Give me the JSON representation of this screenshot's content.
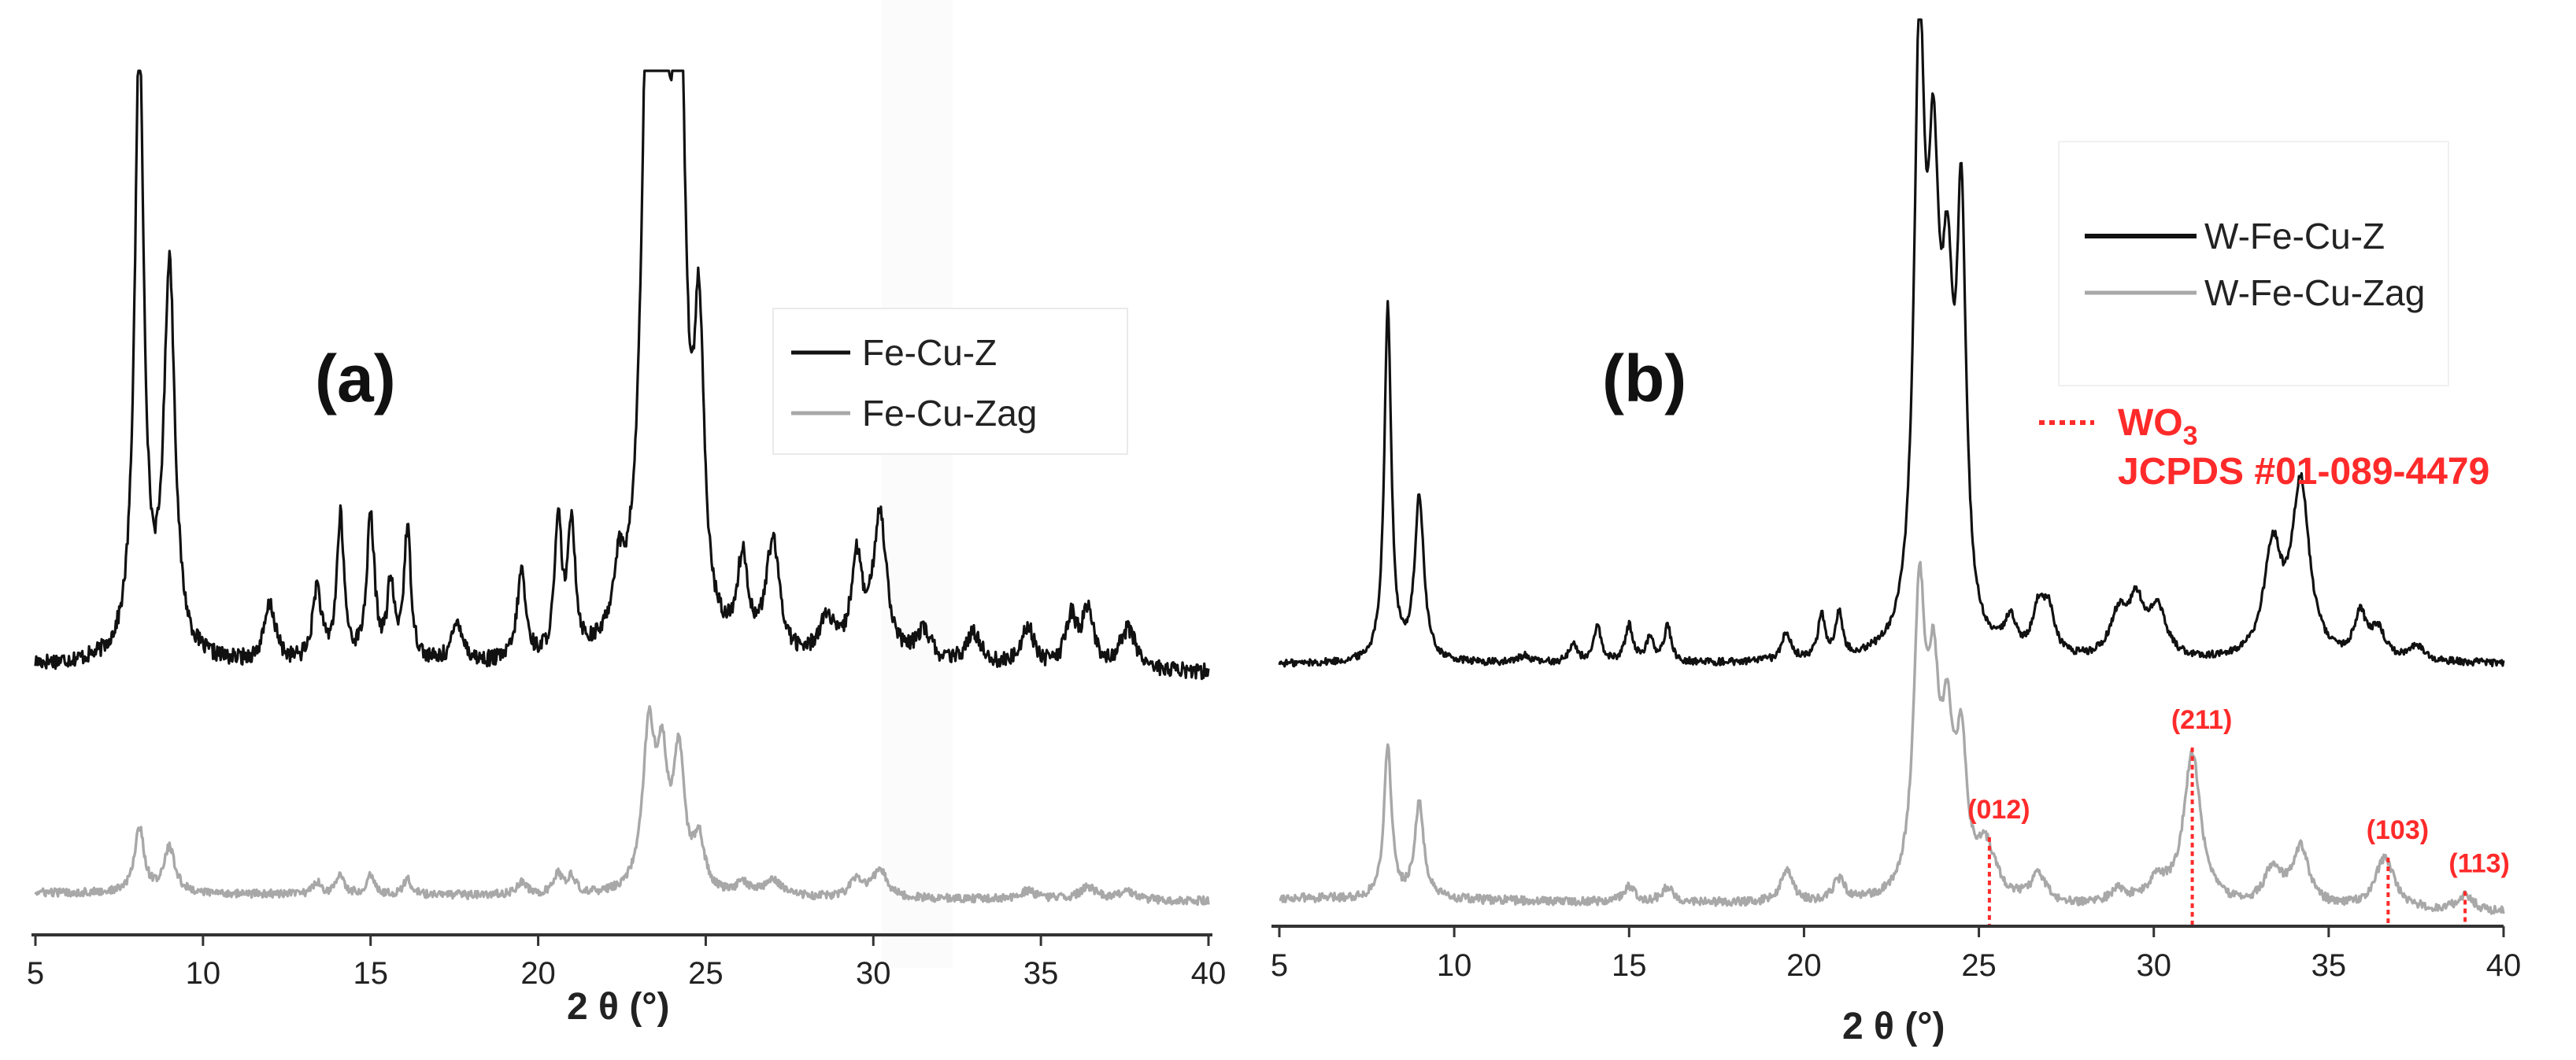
{
  "chart_data": [
    {
      "type": "line",
      "panel_label": "(a)",
      "xlabel": "2 θ (°)",
      "ylabel": "",
      "xlim": [
        5,
        40
      ],
      "xticks": [
        "5",
        "10",
        "15",
        "20",
        "25",
        "30",
        "35",
        "40"
      ],
      "grid": false,
      "legend_position": "top-right",
      "series": [
        {
          "name": "Fe-Cu-Z",
          "color": "#111111",
          "baseline": 22,
          "slope": 2.0,
          "noise": 2.0,
          "peaks": [
            [
              8.1,
              150,
              0.17
            ],
            [
              9.0,
              95,
              0.2
            ],
            [
              12.0,
              14,
              0.2
            ],
            [
              13.4,
              18,
              0.15
            ],
            [
              14.1,
              35,
              0.13
            ],
            [
              15.0,
              35,
              0.14
            ],
            [
              15.6,
              18,
              0.12
            ],
            [
              16.1,
              32,
              0.13
            ],
            [
              17.6,
              10,
              0.2
            ],
            [
              19.5,
              22,
              0.15
            ],
            [
              20.6,
              32,
              0.13
            ],
            [
              21.0,
              32,
              0.13
            ],
            [
              22.4,
              15,
              0.2
            ],
            [
              23.3,
              170,
              0.22
            ],
            [
              23.7,
              150,
              0.2
            ],
            [
              24.2,
              165,
              0.2
            ],
            [
              24.8,
              70,
              0.18
            ],
            [
              26.1,
              22,
              0.2
            ],
            [
              27.0,
              28,
              0.25
            ],
            [
              28.6,
              10,
              0.3
            ],
            [
              29.5,
              24,
              0.2
            ],
            [
              30.2,
              36,
              0.25
            ],
            [
              31.5,
              8,
              0.3
            ],
            [
              33.0,
              8,
              0.3
            ],
            [
              34.6,
              10,
              0.25
            ],
            [
              35.9,
              12,
              0.2
            ],
            [
              36.4,
              14,
              0.2
            ],
            [
              37.6,
              10,
              0.3
            ]
          ]
        },
        {
          "name": "Fe-Cu-Zag",
          "color": "#a8a8a8",
          "baseline": 0,
          "slope": 2.0,
          "noise": 1.0,
          "peaks": [
            [
              8.1,
              16,
              0.17
            ],
            [
              9.0,
              11,
              0.2
            ],
            [
              13.4,
              3,
              0.15
            ],
            [
              14.1,
              5,
              0.13
            ],
            [
              15.0,
              5,
              0.14
            ],
            [
              16.1,
              4,
              0.13
            ],
            [
              19.5,
              3,
              0.2
            ],
            [
              20.6,
              5,
              0.15
            ],
            [
              21.0,
              4,
              0.15
            ],
            [
              23.3,
              38,
              0.22
            ],
            [
              23.7,
              28,
              0.2
            ],
            [
              24.2,
              32,
              0.2
            ],
            [
              24.8,
              12,
              0.2
            ],
            [
              26.1,
              3,
              0.2
            ],
            [
              27.0,
              4,
              0.3
            ],
            [
              29.5,
              4,
              0.25
            ],
            [
              30.2,
              7,
              0.25
            ],
            [
              34.6,
              2,
              0.3
            ],
            [
              36.4,
              3,
              0.3
            ],
            [
              37.6,
              2,
              0.3
            ]
          ]
        }
      ]
    },
    {
      "type": "line",
      "panel_label": "(b)",
      "xlabel": "2 θ (°)",
      "ylabel": "",
      "xlim": [
        5,
        40
      ],
      "xticks": [
        "5",
        "10",
        "15",
        "20",
        "25",
        "30",
        "35",
        "40"
      ],
      "grid": false,
      "legend_position": "top-right",
      "series": [
        {
          "name": "W-Fe-Cu-Z",
          "color": "#111111",
          "baseline": 30,
          "slope": 0.0,
          "noise": 1.0,
          "peaks": [
            [
              8.1,
              98,
              0.12
            ],
            [
              9.0,
              45,
              0.16
            ],
            [
              12.0,
              2,
              0.2
            ],
            [
              13.4,
              5,
              0.15
            ],
            [
              14.1,
              10,
              0.12
            ],
            [
              15.0,
              10,
              0.14
            ],
            [
              15.6,
              7,
              0.12
            ],
            [
              16.1,
              10,
              0.12
            ],
            [
              19.5,
              8,
              0.15
            ],
            [
              20.5,
              12,
              0.12
            ],
            [
              21.0,
              12,
              0.12
            ],
            [
              23.3,
              160,
              0.18
            ],
            [
              23.7,
              110,
              0.2
            ],
            [
              24.1,
              80,
              0.2
            ],
            [
              24.5,
              112,
              0.16
            ],
            [
              25.9,
              9,
              0.2
            ],
            [
              26.7,
              12,
              0.2
            ],
            [
              27.0,
              12,
              0.2
            ],
            [
              29.0,
              12,
              0.3
            ],
            [
              29.5,
              14,
              0.25
            ],
            [
              30.1,
              14,
              0.3
            ],
            [
              33.4,
              30,
              0.3
            ],
            [
              34.2,
              48,
              0.3
            ],
            [
              35.9,
              12,
              0.2
            ],
            [
              36.4,
              8,
              0.25
            ],
            [
              37.5,
              4,
              0.3
            ]
          ]
        },
        {
          "name": "W-Fe-Cu-Zag",
          "color": "#a8a8a8",
          "baseline": 0,
          "slope": 4.0,
          "noise": 1.2,
          "peaks": [
            [
              8.1,
              42,
              0.13
            ],
            [
              9.0,
              26,
              0.16
            ],
            [
              15.0,
              4,
              0.2
            ],
            [
              16.1,
              4,
              0.2
            ],
            [
              19.5,
              9,
              0.2
            ],
            [
              21.0,
              6,
              0.2
            ],
            [
              23.3,
              80,
              0.2
            ],
            [
              23.7,
              50,
              0.2
            ],
            [
              24.1,
              40,
              0.2
            ],
            [
              24.5,
              38,
              0.18
            ],
            [
              25.2,
              14,
              0.35
            ],
            [
              26.7,
              8,
              0.25
            ],
            [
              29.0,
              4,
              0.3
            ],
            [
              30.1,
              6,
              0.35
            ],
            [
              31.1,
              42,
              0.3
            ],
            [
              33.4,
              10,
              0.3
            ],
            [
              34.2,
              16,
              0.3
            ],
            [
              36.6,
              14,
              0.35
            ],
            [
              38.9,
              4,
              0.3
            ]
          ]
        }
      ],
      "reference": {
        "label": "WO",
        "label_subscript": "3",
        "source": "JCPDS #01-089-4479",
        "color": "#ff2a2a",
        "lines": [
          {
            "x": 25.3,
            "hkl": "(012)"
          },
          {
            "x": 31.1,
            "hkl": "(211)"
          },
          {
            "x": 36.7,
            "hkl": "(103)"
          },
          {
            "x": 38.9,
            "hkl": "(113)"
          }
        ]
      }
    }
  ]
}
